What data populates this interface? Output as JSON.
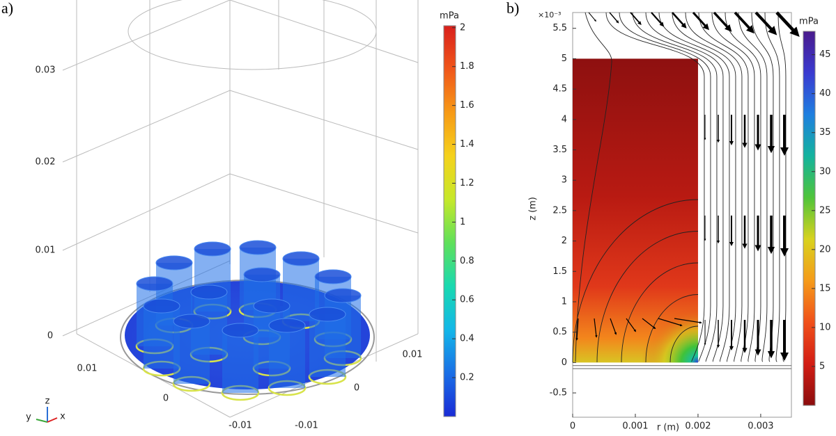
{
  "panels": [
    {
      "label": "a)",
      "z_tick_labels": [
        "0.03",
        "0.02",
        "0.01",
        "0"
      ],
      "y_tick_labels": [
        "0.01",
        "0",
        "-0.01"
      ],
      "x_tick_labels": [
        "0.01",
        "0",
        "-0.01"
      ],
      "triad": {
        "z": "z",
        "y": "y",
        "x": "x"
      },
      "colorbar": {
        "unit": "mPa",
        "lim": [
          0,
          2.01
        ],
        "ticks": [
          0.2,
          0.4,
          0.6,
          0.8,
          1,
          1.2,
          1.4,
          1.6,
          1.8,
          2
        ],
        "colors": [
          "#1a2bd6",
          "#1a6fe6",
          "#13b7e8",
          "#19d9b0",
          "#5fe05a",
          "#c6e82a",
          "#f5d21c",
          "#f79a16",
          "#f0561a",
          "#d9201c"
        ]
      }
    },
    {
      "label": "b)",
      "xlabel": "r (m)",
      "ylabel": "z (m)",
      "exponent_label": "×10⁻³",
      "xlim": [
        0,
        0.00349
      ],
      "xticks": [
        0,
        0.001,
        0.002,
        0.003
      ],
      "ylim": [
        -0.9,
        5.76
      ],
      "yticks": [
        -0.5,
        0,
        0.5,
        1,
        1.5,
        2,
        2.5,
        3,
        3.5,
        4,
        4.5,
        5,
        5.5
      ],
      "colorbar": {
        "unit": "mPa",
        "lim": [
          0,
          48
        ],
        "ticks": [
          5,
          10,
          15,
          20,
          25,
          30,
          35,
          40,
          45
        ],
        "colors": [
          "#8b0d0d",
          "#d21d14",
          "#f0501a",
          "#f59b1a",
          "#d8d21e",
          "#4fc43a",
          "#14b39e",
          "#1f7fe0",
          "#3a3ad0",
          "#4a1a8c"
        ]
      }
    }
  ]
}
